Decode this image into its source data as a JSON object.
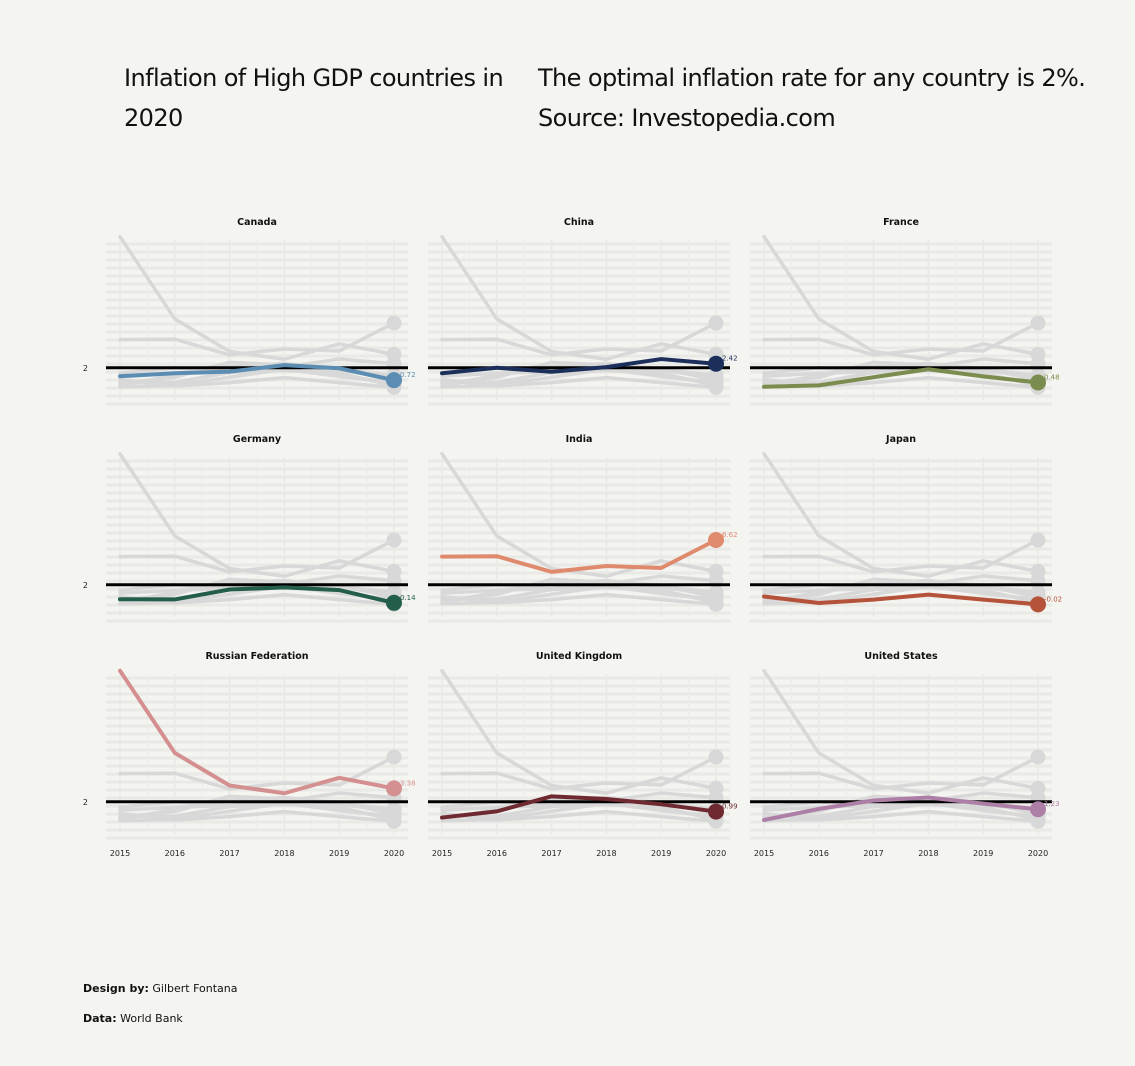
{
  "title_left": "Inflation of High GDP countries in 2020",
  "title_right_line1": "The optimal inflation rate for any country is 2%.",
  "title_right_line2": "Source: Investopedia.com",
  "credits": {
    "design_label": "Design by:",
    "design_value": "Gilbert Fontana",
    "data_label": "Data:",
    "data_value": "World Bank"
  },
  "chart_data": {
    "type": "line",
    "reference_value": 2,
    "reference_label": "2",
    "x": [
      2015,
      2016,
      2017,
      2018,
      2019,
      2020
    ],
    "x_tick_labels": [
      "2015",
      "2016",
      "2017",
      "2018",
      "2019",
      "2020"
    ],
    "ylim": [
      -0.5,
      15.6
    ],
    "grid": true,
    "background_series_color": "#d8d8d8",
    "reference_line_color": "#000000",
    "series": [
      {
        "name": "Canada",
        "color": "#5b8db3",
        "values": [
          1.13,
          1.43,
          1.6,
          2.27,
          1.95,
          0.72
        ],
        "end_label": "0.72"
      },
      {
        "name": "China",
        "color": "#1c2f5a",
        "values": [
          1.44,
          2.0,
          1.59,
          2.07,
          2.9,
          2.42
        ],
        "end_label": "2.42"
      },
      {
        "name": "France",
        "color": "#7a8c4e",
        "values": [
          0.04,
          0.18,
          1.03,
          1.85,
          1.11,
          0.48
        ],
        "end_label": "0.48"
      },
      {
        "name": "Germany",
        "color": "#235e4b",
        "values": [
          0.51,
          0.49,
          1.51,
          1.73,
          1.45,
          0.14
        ],
        "end_label": "0.14"
      },
      {
        "name": "India",
        "color": "#e08a6d",
        "values": [
          4.91,
          4.95,
          3.33,
          3.94,
          3.73,
          6.62
        ],
        "end_label": "6.62"
      },
      {
        "name": "Japan",
        "color": "#b5523a",
        "values": [
          0.79,
          0.12,
          0.47,
          0.98,
          0.47,
          -0.02
        ],
        "end_label": "-0.02"
      },
      {
        "name": "Russian Federation",
        "color": "#d49090",
        "values": [
          15.53,
          7.04,
          3.68,
          2.88,
          4.47,
          3.38
        ],
        "end_label": "3.38"
      },
      {
        "name": "United Kingdom",
        "color": "#6e2a30",
        "values": [
          0.37,
          1.01,
          2.56,
          2.29,
          1.74,
          0.99
        ],
        "end_label": "0.99"
      },
      {
        "name": "United States",
        "color": "#ad7fa6",
        "values": [
          0.12,
          1.26,
          2.13,
          2.44,
          1.81,
          1.23
        ],
        "end_label": "1.23"
      }
    ]
  }
}
